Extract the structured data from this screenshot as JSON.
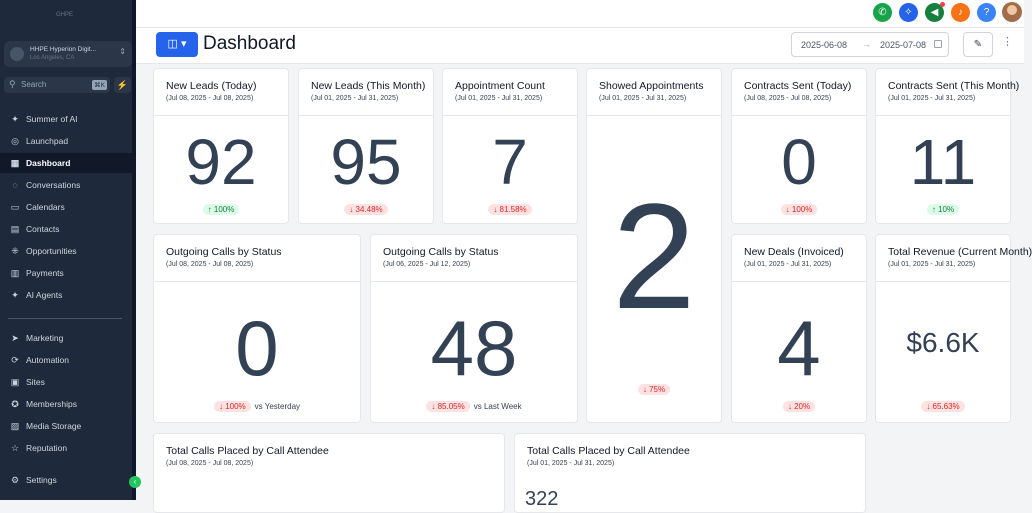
{
  "sidebar": {
    "logo": "GHPE",
    "location_name": "HHPE Hyperion Digit...",
    "location_sub": "Los Angeles, CA",
    "search_placeholder": "Search",
    "search_shortcut": "⌘K",
    "items": [
      {
        "label": "Summer of AI",
        "icon": "sparkle-icon"
      },
      {
        "label": "Launchpad",
        "icon": "rocket-icon"
      },
      {
        "label": "Dashboard",
        "icon": "grid-icon",
        "active": true
      },
      {
        "label": "Conversations",
        "icon": "chat-icon"
      },
      {
        "label": "Calendars",
        "icon": "calendar-icon"
      },
      {
        "label": "Contacts",
        "icon": "contacts-icon"
      },
      {
        "label": "Opportunities",
        "icon": "opportunities-icon"
      },
      {
        "label": "Payments",
        "icon": "payments-icon"
      },
      {
        "label": "AI Agents",
        "icon": "sparkle-icon"
      },
      {
        "label": "Marketing",
        "icon": "send-icon"
      },
      {
        "label": "Automation",
        "icon": "automation-icon"
      },
      {
        "label": "Sites",
        "icon": "sites-icon"
      },
      {
        "label": "Memberships",
        "icon": "memberships-icon"
      },
      {
        "label": "Media Storage",
        "icon": "media-icon"
      },
      {
        "label": "Reputation",
        "icon": "reputation-icon"
      },
      {
        "label": "Settings",
        "icon": "gear-icon"
      }
    ]
  },
  "topbar": {
    "buttons": [
      {
        "icon": "phone-icon",
        "color": "#16a34a"
      },
      {
        "icon": "magic-icon",
        "color": "#2563eb"
      },
      {
        "icon": "megaphone-icon",
        "color": "#15803d"
      },
      {
        "icon": "bell-icon",
        "color": "#f97316"
      },
      {
        "icon": "help-icon",
        "color": "#3b82f6"
      }
    ]
  },
  "header": {
    "title": "Dashboard",
    "date_start": "2025-06-08",
    "date_end": "2025-07-08"
  },
  "cards": [
    {
      "title": "New Leads (Today)",
      "range": "(Jul 08, 2025 - Jul 08, 2025)",
      "value": "92",
      "change": "↑ 100%",
      "dir": "up"
    },
    {
      "title": "New Leads (This Month)",
      "range": "(Jul 01, 2025 - Jul 31, 2025)",
      "value": "95",
      "change": "↓ 34.48%",
      "dir": "down"
    },
    {
      "title": "Appointment Count",
      "range": "(Jul 01, 2025 - Jul 31, 2025)",
      "value": "7",
      "change": "↓ 81.58%",
      "dir": "down"
    },
    {
      "title": "Showed Appointments",
      "range": "(Jul 01, 2025 - Jul 31, 2025)",
      "value": "2",
      "change": "↓ 75%",
      "dir": "down"
    },
    {
      "title": "Contracts Sent (Today)",
      "range": "(Jul 08, 2025 - Jul 08, 2025)",
      "value": "0",
      "change": "↓ 100%",
      "dir": "down"
    },
    {
      "title": "Contracts Sent (This Month)",
      "range": "(Jul 01, 2025 - Jul 31, 2025)",
      "value": "11",
      "change": "↑ 10%",
      "dir": "up"
    },
    {
      "title": "Outgoing Calls by Status",
      "range": "(Jul 08, 2025 - Jul 08, 2025)",
      "value": "0",
      "change": "↓ 100%",
      "dir": "down",
      "compare": "vs Yesterday"
    },
    {
      "title": "Outgoing Calls by Status",
      "range": "(Jul 06, 2025 - Jul 12, 2025)",
      "value": "48",
      "change": "↓ 85.05%",
      "dir": "down",
      "compare": "vs Last Week"
    },
    {
      "title": "New Deals (Invoiced)",
      "range": "(Jul 01, 2025 - Jul 31, 2025)",
      "value": "4",
      "change": "↓ 20%",
      "dir": "down"
    },
    {
      "title": "Total Revenue (Current Month)",
      "range": "(Jul 01, 2025 - Jul 31, 2025)",
      "value": "$6.6K",
      "change": "↓ 65.63%",
      "dir": "down"
    },
    {
      "title": "Total Calls Placed by Call Attendee",
      "range": "(Jul 08, 2025 - Jul 08, 2025)",
      "value": ""
    },
    {
      "title": "Total Calls Placed by Call Attendee",
      "range": "(Jul 01, 2025 - Jul 31, 2025)",
      "value": "322"
    }
  ]
}
